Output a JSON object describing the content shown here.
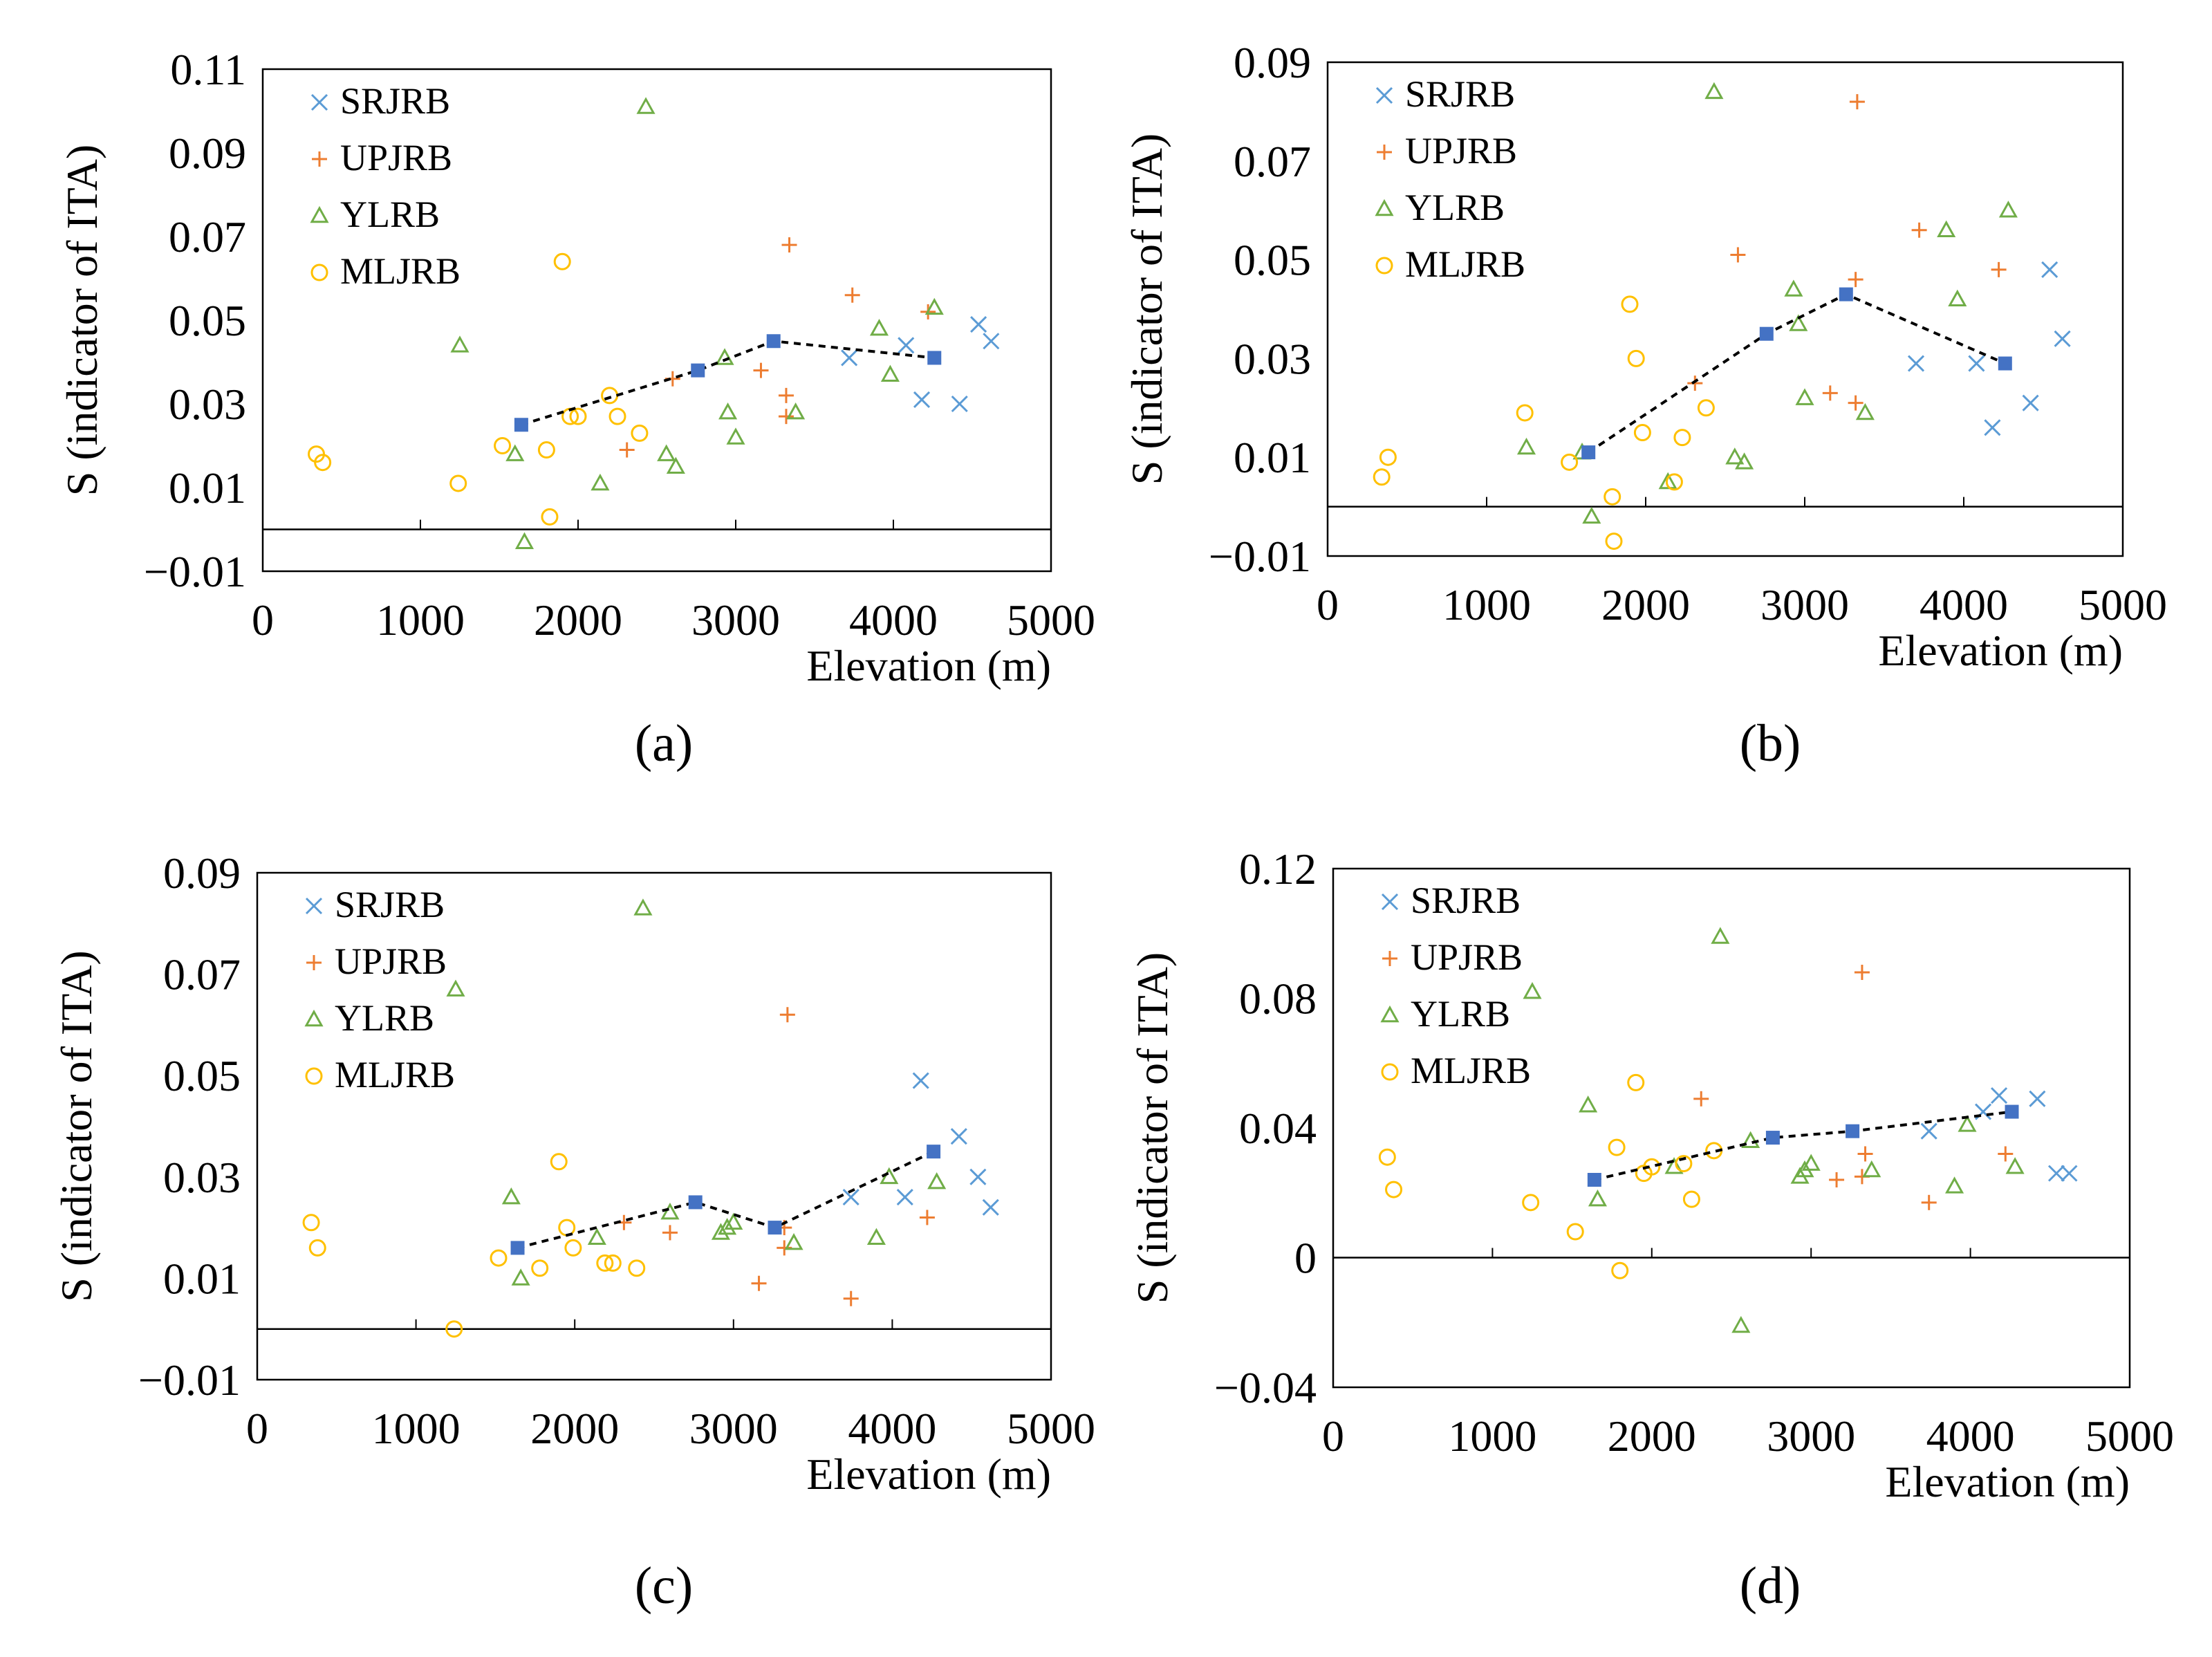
{
  "figure": {
    "panel_labels": [
      "(a)",
      "(b)",
      "(c)",
      "(d)"
    ]
  },
  "colors": {
    "SRJRB": "#5b9bd5",
    "UPJRB": "#ed7d31",
    "YLRB": "#70ad47",
    "MLJRB": "#ffc000",
    "mean": "#4472c4",
    "trend": "#000000"
  },
  "chart_data": [
    {
      "type": "scatter",
      "panel": "(a)",
      "xlabel": "Elevation (m)",
      "ylabel": "S (indicator of ITA)",
      "xlim": [
        0,
        5000
      ],
      "ylim": [
        -0.01,
        0.11
      ],
      "xticks": [
        0,
        1000,
        2000,
        3000,
        4000,
        5000
      ],
      "yticks": [
        -0.01,
        0.01,
        0.03,
        0.05,
        0.07,
        0.09,
        0.11
      ],
      "ytick_labels": [
        "−0.01",
        "0.01",
        "0.03",
        "0.05",
        "0.07",
        "0.09",
        "0.11"
      ],
      "legend": [
        "SRJRB",
        "UPJRB",
        "YLRB",
        "MLJRB"
      ],
      "series": [
        {
          "name": "SRJRB",
          "marker": "x",
          "points": [
            [
              3720,
              0.041
            ],
            [
              4080,
              0.044
            ],
            [
              4180,
              0.031
            ],
            [
              4420,
              0.03
            ],
            [
              4540,
              0.049
            ],
            [
              4620,
              0.045
            ]
          ]
        },
        {
          "name": "UPJRB",
          "marker": "+",
          "points": [
            [
              2310,
              0.019
            ],
            [
              2600,
              0.036
            ],
            [
              3160,
              0.038
            ],
            [
              3320,
              0.032
            ],
            [
              3320,
              0.027
            ],
            [
              3340,
              0.068
            ],
            [
              3740,
              0.056
            ],
            [
              4220,
              0.052
            ]
          ]
        },
        {
          "name": "YLRB",
          "marker": "triangle",
          "points": [
            [
              1250,
              0.044
            ],
            [
              1600,
              0.018
            ],
            [
              1660,
              -0.003
            ],
            [
              2140,
              0.011
            ],
            [
              2430,
              0.101
            ],
            [
              2560,
              0.018
            ],
            [
              2620,
              0.015
            ],
            [
              2930,
              0.041
            ],
            [
              2950,
              0.028
            ],
            [
              3000,
              0.022
            ],
            [
              3380,
              0.028
            ],
            [
              3910,
              0.048
            ],
            [
              3980,
              0.037
            ],
            [
              4260,
              0.053
            ]
          ]
        },
        {
          "name": "MLJRB",
          "marker": "circle",
          "points": [
            [
              340,
              0.018
            ],
            [
              380,
              0.016
            ],
            [
              1240,
              0.011
            ],
            [
              1520,
              0.02
            ],
            [
              1800,
              0.019
            ],
            [
              1820,
              0.003
            ],
            [
              1900,
              0.064
            ],
            [
              1950,
              0.027
            ],
            [
              2000,
              0.027
            ],
            [
              2200,
              0.032
            ],
            [
              2250,
              0.027
            ],
            [
              2390,
              0.023
            ]
          ]
        }
      ],
      "trend": [
        [
          1640,
          0.025
        ],
        [
          2760,
          0.038
        ],
        [
          3240,
          0.045
        ],
        [
          4260,
          0.041
        ]
      ]
    },
    {
      "type": "scatter",
      "panel": "(b)",
      "xlabel": "Elevation (m)",
      "ylabel": "S (indicator of ITA)",
      "xlim": [
        0,
        5000
      ],
      "ylim": [
        -0.01,
        0.09
      ],
      "xticks": [
        0,
        1000,
        2000,
        3000,
        4000,
        5000
      ],
      "yticks": [
        -0.01,
        0.01,
        0.03,
        0.05,
        0.07,
        0.09
      ],
      "ytick_labels": [
        "−0.01",
        "0.01",
        "0.03",
        "0.05",
        "0.07",
        "0.09"
      ],
      "legend": [
        "SRJRB",
        "UPJRB",
        "YLRB",
        "MLJRB"
      ],
      "series": [
        {
          "name": "SRJRB",
          "marker": "x",
          "points": [
            [
              3700,
              0.029
            ],
            [
              4080,
              0.029
            ],
            [
              4180,
              0.016
            ],
            [
              4420,
              0.021
            ],
            [
              4540,
              0.048
            ],
            [
              4620,
              0.034
            ]
          ]
        },
        {
          "name": "UPJRB",
          "marker": "+",
          "points": [
            [
              2310,
              0.025
            ],
            [
              2580,
              0.051
            ],
            [
              3160,
              0.023
            ],
            [
              3320,
              0.046
            ],
            [
              3320,
              0.021
            ],
            [
              3330,
              0.082
            ],
            [
              3720,
              0.056
            ],
            [
              4220,
              0.048
            ]
          ]
        },
        {
          "name": "YLRB",
          "marker": "triangle",
          "points": [
            [
              1250,
              0.012
            ],
            [
              1600,
              0.011
            ],
            [
              1660,
              -0.002
            ],
            [
              2140,
              0.005
            ],
            [
              2430,
              0.084
            ],
            [
              2560,
              0.01
            ],
            [
              2620,
              0.009
            ],
            [
              2930,
              0.044
            ],
            [
              2960,
              0.037
            ],
            [
              3000,
              0.022
            ],
            [
              3380,
              0.019
            ],
            [
              3890,
              0.056
            ],
            [
              3960,
              0.042
            ],
            [
              4280,
              0.06
            ]
          ]
        },
        {
          "name": "MLJRB",
          "marker": "circle",
          "points": [
            [
              340,
              0.006
            ],
            [
              380,
              0.01
            ],
            [
              1240,
              0.019
            ],
            [
              1520,
              0.009
            ],
            [
              1790,
              0.002
            ],
            [
              1800,
              -0.007
            ],
            [
              1900,
              0.041
            ],
            [
              1940,
              0.03
            ],
            [
              1980,
              0.015
            ],
            [
              2180,
              0.005
            ],
            [
              2230,
              0.014
            ],
            [
              2380,
              0.02
            ]
          ]
        }
      ],
      "trend": [
        [
          1640,
          0.011
        ],
        [
          2760,
          0.035
        ],
        [
          3260,
          0.043
        ],
        [
          4260,
          0.029
        ]
      ]
    },
    {
      "type": "scatter",
      "panel": "(c)",
      "xlabel": "Elevation (m)",
      "ylabel": "S (indicator of ITA)",
      "xlim": [
        0,
        5000
      ],
      "ylim": [
        -0.01,
        0.09
      ],
      "xticks": [
        0,
        1000,
        2000,
        3000,
        4000,
        5000
      ],
      "yticks": [
        -0.01,
        0.01,
        0.03,
        0.05,
        0.07,
        0.09
      ],
      "ytick_labels": [
        "−0.01",
        "0.01",
        "0.03",
        "0.05",
        "0.07",
        "0.09"
      ],
      "legend": [
        "SRJRB",
        "UPJRB",
        "YLRB",
        "MLJRB"
      ],
      "series": [
        {
          "name": "SRJRB",
          "marker": "x",
          "points": [
            [
              3740,
              0.026
            ],
            [
              4080,
              0.026
            ],
            [
              4180,
              0.049
            ],
            [
              4420,
              0.038
            ],
            [
              4540,
              0.03
            ],
            [
              4620,
              0.024
            ]
          ]
        },
        {
          "name": "UPJRB",
          "marker": "+",
          "points": [
            [
              2310,
              0.021
            ],
            [
              2600,
              0.019
            ],
            [
              3160,
              0.009
            ],
            [
              3320,
              0.02
            ],
            [
              3320,
              0.016
            ],
            [
              3340,
              0.062
            ],
            [
              3740,
              0.006
            ],
            [
              4220,
              0.022
            ]
          ]
        },
        {
          "name": "YLRB",
          "marker": "triangle",
          "points": [
            [
              1250,
              0.067
            ],
            [
              1600,
              0.026
            ],
            [
              1660,
              0.01
            ],
            [
              2140,
              0.018
            ],
            [
              2430,
              0.083
            ],
            [
              2600,
              0.023
            ],
            [
              2920,
              0.019
            ],
            [
              2960,
              0.02
            ],
            [
              3000,
              0.021
            ],
            [
              3380,
              0.017
            ],
            [
              3900,
              0.018
            ],
            [
              3980,
              0.03
            ],
            [
              4280,
              0.029
            ]
          ]
        },
        {
          "name": "MLJRB",
          "marker": "circle",
          "points": [
            [
              340,
              0.021
            ],
            [
              380,
              0.016
            ],
            [
              1240,
              0.0
            ],
            [
              1520,
              0.014
            ],
            [
              1780,
              0.012
            ],
            [
              1900,
              0.033
            ],
            [
              1950,
              0.02
            ],
            [
              1990,
              0.016
            ],
            [
              2190,
              0.013
            ],
            [
              2240,
              0.013
            ],
            [
              2390,
              0.012
            ]
          ]
        }
      ],
      "trend": [
        [
          1640,
          0.016
        ],
        [
          2760,
          0.025
        ],
        [
          3260,
          0.02
        ],
        [
          4260,
          0.035
        ]
      ]
    },
    {
      "type": "scatter",
      "panel": "(d)",
      "xlabel": "Elevation (m)",
      "ylabel": "S (indicator of ITA)",
      "xlim": [
        0,
        5000
      ],
      "ylim": [
        -0.04,
        0.12
      ],
      "xticks": [
        0,
        1000,
        2000,
        3000,
        4000,
        5000
      ],
      "yticks": [
        -0.04,
        0,
        0.04,
        0.08,
        0.12
      ],
      "ytick_labels": [
        "−0.04",
        "0",
        "0.04",
        "0.08",
        "0.12"
      ],
      "legend": [
        "SRJRB",
        "UPJRB",
        "YLRB",
        "MLJRB"
      ],
      "series": [
        {
          "name": "SRJRB",
          "marker": "x",
          "points": [
            [
              3740,
              0.039
            ],
            [
              4080,
              0.045
            ],
            [
              4180,
              0.05
            ],
            [
              4420,
              0.049
            ],
            [
              4540,
              0.026
            ],
            [
              4620,
              0.026
            ]
          ]
        },
        {
          "name": "UPJRB",
          "marker": "+",
          "points": [
            [
              2310,
              0.049
            ],
            [
              3160,
              0.024
            ],
            [
              3320,
              0.025
            ],
            [
              3320,
              0.088
            ],
            [
              3340,
              0.032
            ],
            [
              3740,
              0.017
            ],
            [
              4220,
              0.032
            ]
          ]
        },
        {
          "name": "YLRB",
          "marker": "triangle",
          "points": [
            [
              1250,
              0.082
            ],
            [
              1600,
              0.047
            ],
            [
              1660,
              0.018
            ],
            [
              2140,
              0.028
            ],
            [
              2430,
              0.099
            ],
            [
              2560,
              -0.021
            ],
            [
              2620,
              0.036
            ],
            [
              2930,
              0.025
            ],
            [
              2960,
              0.027
            ],
            [
              3000,
              0.029
            ],
            [
              3380,
              0.027
            ],
            [
              3900,
              0.022
            ],
            [
              3980,
              0.041
            ],
            [
              4280,
              0.028
            ]
          ]
        },
        {
          "name": "MLJRB",
          "marker": "circle",
          "points": [
            [
              340,
              0.031
            ],
            [
              380,
              0.021
            ],
            [
              1240,
              0.017
            ],
            [
              1520,
              0.008
            ],
            [
              1780,
              0.034
            ],
            [
              1800,
              -0.004
            ],
            [
              1900,
              0.054
            ],
            [
              1950,
              0.026
            ],
            [
              2000,
              0.028
            ],
            [
              2200,
              0.029
            ],
            [
              2250,
              0.018
            ],
            [
              2390,
              0.033
            ]
          ]
        }
      ],
      "trend": [
        [
          1640,
          0.024
        ],
        [
          2760,
          0.037
        ],
        [
          3260,
          0.039
        ],
        [
          4260,
          0.045
        ]
      ]
    }
  ]
}
